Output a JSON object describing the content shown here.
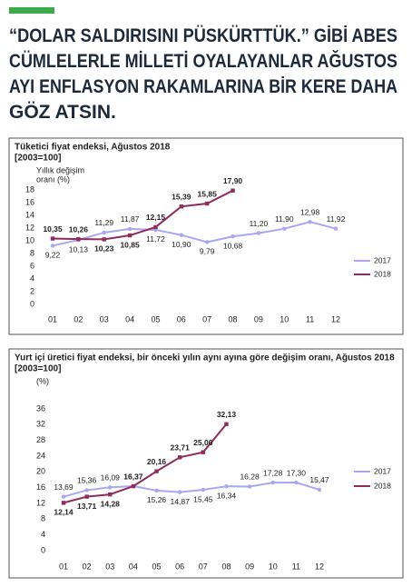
{
  "headline": [
    "“DOLAR SALDIRISINI PÜSKÜRTTÜK.” GİBİ ABES",
    "CÜMLELERLE MİLLETİ OYALAYANLAR AĞUSTOS",
    "AYI ENFLASYON RAKAMLARINA BİR KERE DAHA",
    "GÖZ ATSIN."
  ],
  "chart_data": [
    {
      "type": "line",
      "title": "Tüketici fiyat endeksi, Ağustos 2018",
      "subtitle": "[2003=100]",
      "y_label": [
        "Yıllık değişim",
        "oranı (%)"
      ],
      "categories": [
        "01",
        "02",
        "03",
        "04",
        "05",
        "06",
        "07",
        "08",
        "09",
        "10",
        "11",
        "12"
      ],
      "ylim": [
        0,
        18
      ],
      "yticks": [
        0,
        2,
        4,
        6,
        8,
        10,
        12,
        14,
        16,
        18
      ],
      "series": [
        {
          "name": "2017",
          "color": "#a9a6f2",
          "values": [
            9.22,
            10.13,
            11.29,
            11.87,
            11.72,
            10.9,
            9.79,
            10.68,
            11.2,
            11.9,
            12.98,
            11.92
          ],
          "value_labels": [
            "9,22",
            "10,13",
            "11,29",
            "11,87",
            "11,72",
            "10,90",
            "9,79",
            "10,68",
            "11,20",
            "11,90",
            "12,98",
            "11,92"
          ]
        },
        {
          "name": "2018",
          "color": "#8e2c5c",
          "values": [
            10.35,
            10.26,
            10.23,
            10.85,
            12.15,
            15.39,
            15.85,
            17.9,
            null,
            null,
            null,
            null
          ],
          "value_labels": [
            "10,35",
            "10,26",
            "10,23",
            "10,85",
            "12,15",
            "15,39",
            "15,85",
            "17,90",
            null,
            null,
            null,
            null
          ]
        }
      ]
    },
    {
      "type": "line",
      "title": "Yurt içi üretici fiyat endeksi, bir önceki yılın aynı ayına göre değişim oranı, Ağustos 2018",
      "subtitle": "[2003=100]",
      "y_label": [
        "(%)"
      ],
      "categories": [
        "01",
        "02",
        "03",
        "04",
        "05",
        "06",
        "07",
        "08",
        "09",
        "10",
        "11",
        "12"
      ],
      "ylim": [
        0,
        36
      ],
      "yticks": [
        0,
        4,
        8,
        12,
        16,
        20,
        24,
        28,
        32,
        36
      ],
      "series": [
        {
          "name": "2017",
          "color": "#a9a6f2",
          "values": [
            13.69,
            15.36,
            16.09,
            16.37,
            15.26,
            14.87,
            15.45,
            16.34,
            16.28,
            17.28,
            17.3,
            15.47
          ],
          "value_labels": [
            "13,69",
            "15,36",
            "16,09",
            "16,37",
            "15,26",
            "14,87",
            "15,45",
            "16,34",
            "16,28",
            "17,28",
            "17,30",
            "15,47"
          ]
        },
        {
          "name": "2018",
          "color": "#8e2c5c",
          "values": [
            12.14,
            13.71,
            14.28,
            16.37,
            20.16,
            23.71,
            25.0,
            32.13,
            null,
            null,
            null,
            null
          ],
          "value_labels": [
            "12,14",
            "13,71",
            "14,28",
            "16,37",
            "20,16",
            "23,71",
            "25,00",
            "32,13",
            null,
            null,
            null,
            null
          ]
        }
      ]
    }
  ]
}
